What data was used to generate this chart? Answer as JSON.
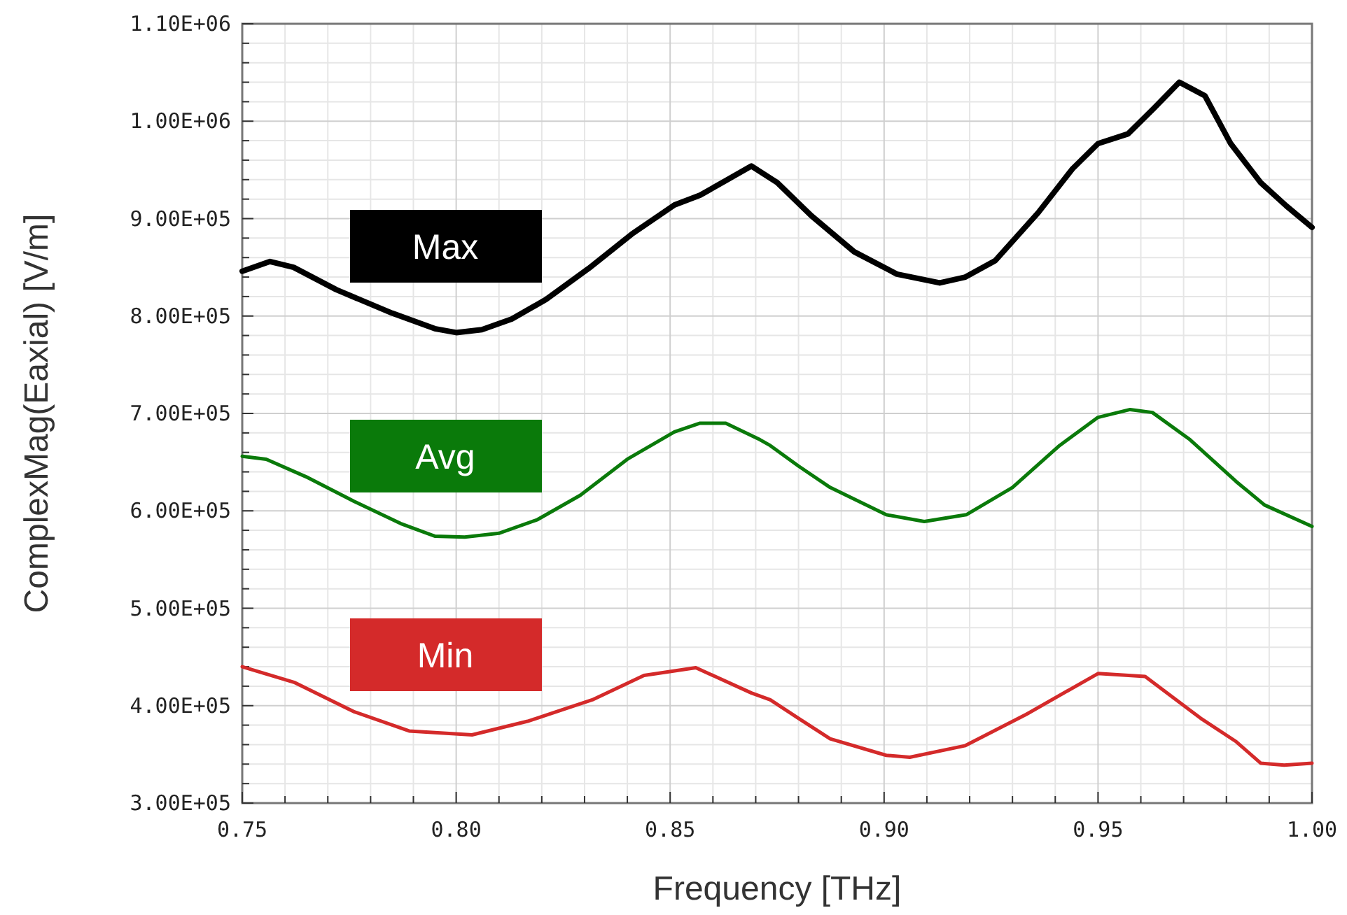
{
  "chart_data": {
    "type": "line",
    "xlabel": "Frequency [THz]",
    "ylabel": "ComplexMag(Eaxial) [V/m]",
    "xlim": [
      0.75,
      1.0
    ],
    "ylim": [
      300000,
      1100000
    ],
    "xticks": [
      {
        "value": 0.75,
        "label": "0.75"
      },
      {
        "value": 0.8,
        "label": "0.80"
      },
      {
        "value": 0.85,
        "label": "0.85"
      },
      {
        "value": 0.9,
        "label": "0.90"
      },
      {
        "value": 0.95,
        "label": "0.95"
      },
      {
        "value": 1.0,
        "label": "1.00"
      }
    ],
    "yticks": [
      {
        "value": 300000,
        "label": "3.00E+05"
      },
      {
        "value": 400000,
        "label": "4.00E+05"
      },
      {
        "value": 500000,
        "label": "5.00E+05"
      },
      {
        "value": 600000,
        "label": "6.00E+05"
      },
      {
        "value": 700000,
        "label": "7.00E+05"
      },
      {
        "value": 800000,
        "label": "8.00E+05"
      },
      {
        "value": 900000,
        "label": "9.00E+05"
      },
      {
        "value": 1000000,
        "label": "1.00E+06"
      },
      {
        "value": 1100000,
        "label": "1.10E+06"
      }
    ],
    "grid": true,
    "legend": false,
    "marker": "none",
    "line_style": "solid",
    "series": [
      {
        "name": "Max",
        "color": "#000000",
        "x": [
          0.75,
          0.7565,
          0.762,
          0.772,
          0.785,
          0.795,
          0.8,
          0.806,
          0.813,
          0.821,
          0.831,
          0.841,
          0.851,
          0.857,
          0.869,
          0.875,
          0.883,
          0.893,
          0.903,
          0.913,
          0.919,
          0.926,
          0.936,
          0.944,
          0.95,
          0.957,
          0.963,
          0.969,
          0.975,
          0.981,
          0.988,
          0.994,
          1.0
        ],
        "values": [
          846000,
          856000,
          850000,
          827000,
          803000,
          787000,
          783000,
          786000,
          797000,
          817000,
          849000,
          884000,
          914000,
          924000,
          954000,
          937000,
          903000,
          866000,
          843000,
          834000,
          840000,
          857000,
          906000,
          951000,
          977000,
          987000,
          1013000,
          1040000,
          1026000,
          977000,
          937000,
          913000,
          891000
        ]
      },
      {
        "name": "Avg",
        "color": "#0a7a0a",
        "x": [
          0.75,
          0.7556,
          0.7654,
          0.776,
          0.787,
          0.795,
          0.802,
          0.81,
          0.819,
          0.829,
          0.84,
          0.851,
          0.857,
          0.863,
          0.871,
          0.8734,
          0.88,
          0.8874,
          0.9005,
          0.9094,
          0.9192,
          0.93,
          0.941,
          0.95,
          0.9575,
          0.9627,
          0.9715,
          0.9823,
          0.9889,
          1.0
        ],
        "values": [
          656000,
          653000,
          634000,
          610000,
          587000,
          574000,
          573000,
          577000,
          591000,
          616000,
          653000,
          681000,
          690000,
          690000,
          673000,
          667000,
          646000,
          624000,
          596000,
          589000,
          596000,
          624000,
          667000,
          696000,
          704000,
          701000,
          673000,
          630000,
          606000,
          584000
        ]
      },
      {
        "name": "Min",
        "color": "#d42a2a",
        "x": [
          0.75,
          0.7621,
          0.776,
          0.789,
          0.8037,
          0.8167,
          0.8318,
          0.8439,
          0.856,
          0.869,
          0.8734,
          0.88,
          0.8874,
          0.9005,
          0.906,
          0.919,
          0.9332,
          0.95,
          0.961,
          0.974,
          0.9823,
          0.988,
          0.9935,
          1.0
        ],
        "values": [
          440000,
          424000,
          394000,
          374000,
          370000,
          384000,
          406000,
          431000,
          439000,
          413000,
          406000,
          387000,
          366000,
          349000,
          347000,
          359000,
          391000,
          433000,
          430000,
          387000,
          363000,
          341000,
          339000,
          341000
        ]
      }
    ]
  }
}
